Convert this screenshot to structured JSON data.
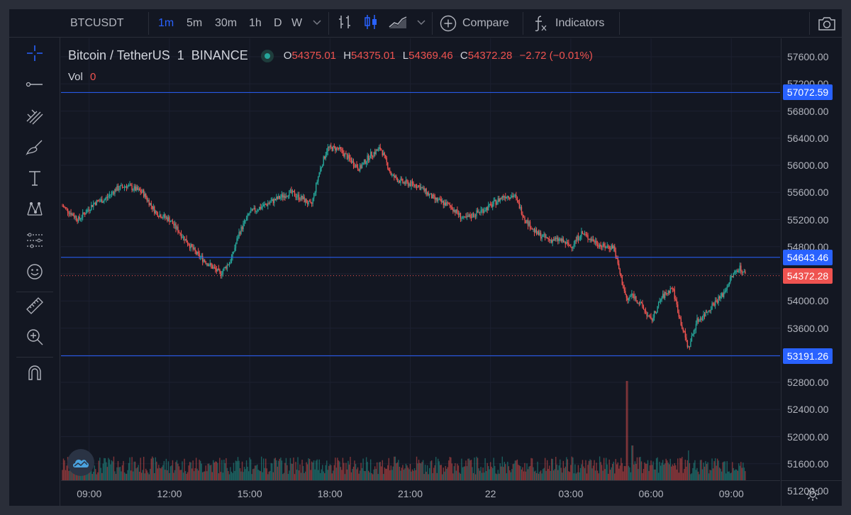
{
  "toolbar": {
    "symbol": "BTCUSDT",
    "intervals": [
      "1m",
      "5m",
      "30m",
      "1h",
      "D",
      "W"
    ],
    "active_interval": "1m",
    "compare_label": "Compare",
    "indicators_label": "Indicators"
  },
  "left_tools": [
    "crosshair-icon",
    "trend-line-icon",
    "fib-icon",
    "brush-icon",
    "text-icon",
    "pattern-icon",
    "forecast-icon",
    "emoji-icon",
    "ruler-icon",
    "zoom-in-icon",
    "magnet-icon"
  ],
  "legend": {
    "pair": "Bitcoin / TetherUS",
    "interval": "1",
    "exchange": "BINANCE",
    "o_label": "O",
    "o_value": "54375.01",
    "h_label": "H",
    "h_value": "54375.01",
    "l_label": "L",
    "l_value": "54369.46",
    "c_label": "C",
    "c_value": "54372.28",
    "change": "−2.72 (−0.01%)",
    "vol_label": "Vol",
    "vol_value": "0"
  },
  "colors": {
    "up": "#26a69a",
    "down": "#ef5350",
    "hline": "#2962ff",
    "price_label": "#2962ff",
    "last_price_label": "#ef5350"
  },
  "chart_data": {
    "type": "candlestick",
    "y_ticks": [
      "57600.00",
      "57200.00",
      "56800.00",
      "56400.00",
      "56000.00",
      "55600.00",
      "55200.00",
      "54800.00",
      "54400.00",
      "54000.00",
      "53600.00",
      "53200.00",
      "52800.00",
      "52400.00",
      "52000.00",
      "51600.00",
      "51200.00"
    ],
    "ylim": [
      51150,
      57650
    ],
    "x_ticks": [
      "09:00",
      "12:00",
      "15:00",
      "18:00",
      "21:00",
      "22",
      "03:00",
      "06:00",
      "09:00"
    ],
    "horizontal_lines": [
      {
        "price": 57072.59,
        "label": "57072.59"
      },
      {
        "price": 54643.46,
        "label": "54643.46"
      },
      {
        "price": 53191.26,
        "label": "53191.26"
      }
    ],
    "last_price": {
      "price": 54372.28,
      "label": "54372.28"
    },
    "price_path_hours": [
      [
        0,
        55400
      ],
      [
        0.6,
        55200
      ],
      [
        1.2,
        55450
      ],
      [
        1.6,
        55500
      ],
      [
        2.0,
        55650
      ],
      [
        2.4,
        55700
      ],
      [
        3.0,
        55600
      ],
      [
        3.5,
        55300
      ],
      [
        4.0,
        55200
      ],
      [
        4.4,
        55000
      ],
      [
        5.0,
        54700
      ],
      [
        5.6,
        54500
      ],
      [
        5.9,
        54400
      ],
      [
        6.3,
        54600
      ],
      [
        6.6,
        55000
      ],
      [
        7.0,
        55300
      ],
      [
        7.5,
        55400
      ],
      [
        8.0,
        55500
      ],
      [
        8.5,
        55600
      ],
      [
        9.0,
        55500
      ],
      [
        9.3,
        55400
      ],
      [
        9.6,
        55900
      ],
      [
        9.9,
        56250
      ],
      [
        10.3,
        56250
      ],
      [
        10.7,
        56100
      ],
      [
        11.1,
        55950
      ],
      [
        11.5,
        56150
      ],
      [
        11.9,
        56250
      ],
      [
        12.3,
        55850
      ],
      [
        12.7,
        55750
      ],
      [
        13.3,
        55700
      ],
      [
        13.9,
        55500
      ],
      [
        14.5,
        55400
      ],
      [
        15.0,
        55200
      ],
      [
        15.5,
        55300
      ],
      [
        16.0,
        55400
      ],
      [
        16.5,
        55550
      ],
      [
        16.9,
        55550
      ],
      [
        17.3,
        55200
      ],
      [
        17.7,
        55000
      ],
      [
        18.2,
        54900
      ],
      [
        18.6,
        54900
      ],
      [
        19.0,
        54800
      ],
      [
        19.4,
        55000
      ],
      [
        19.8,
        54900
      ],
      [
        20.2,
        54800
      ],
      [
        20.6,
        54800
      ],
      [
        20.9,
        54300
      ],
      [
        21.1,
        54000
      ],
      [
        21.3,
        54100
      ],
      [
        21.7,
        53900
      ],
      [
        22.0,
        53700
      ],
      [
        22.4,
        54050
      ],
      [
        22.8,
        54200
      ],
      [
        23.1,
        53700
      ],
      [
        23.4,
        53300
      ],
      [
        23.7,
        53700
      ],
      [
        24.0,
        53800
      ],
      [
        24.3,
        53950
      ],
      [
        24.7,
        54100
      ],
      [
        25.0,
        54350
      ],
      [
        25.3,
        54500
      ],
      [
        25.55,
        54372
      ]
    ],
    "volume_spikes_hours": [
      {
        "x": 21.1,
        "v": 1.0
      },
      {
        "x": 21.3,
        "v": 0.35
      },
      {
        "x": 23.4,
        "v": 0.3
      }
    ]
  }
}
